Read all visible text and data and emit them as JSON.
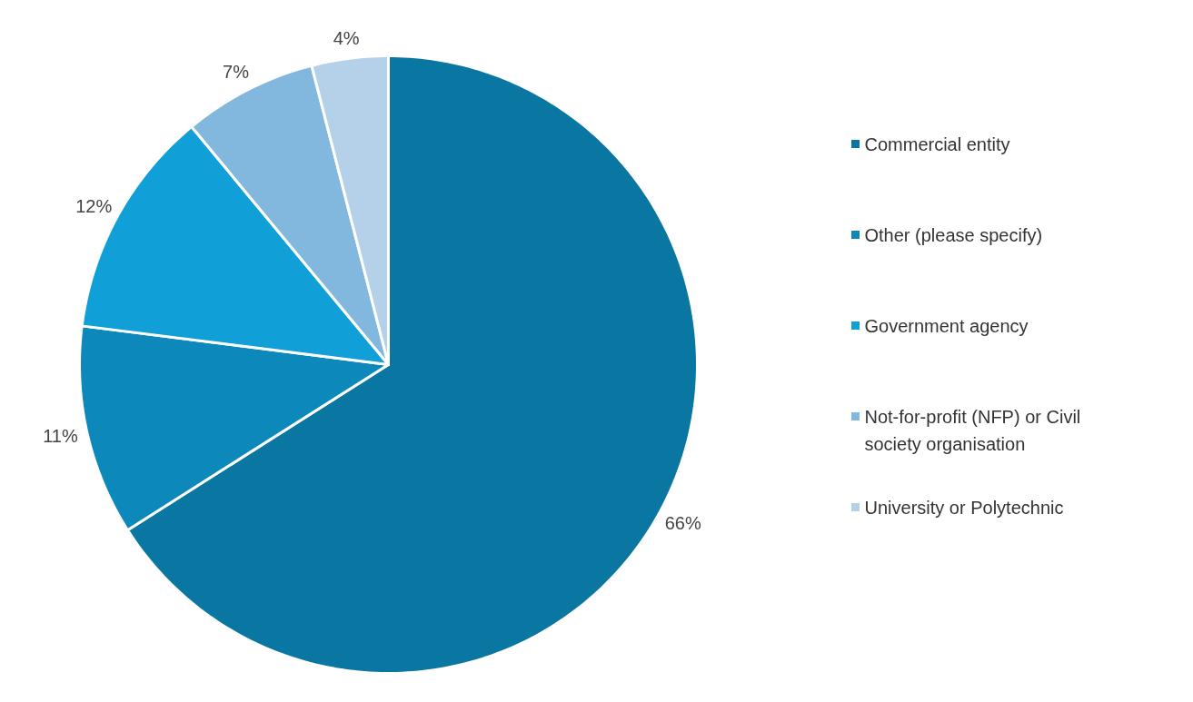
{
  "chart_data": {
    "type": "pie",
    "categories": [
      "Commercial entity",
      "Other (please specify)",
      "Government agency",
      "Not-for-profit (NFP) or Civil society organisation",
      "University or Polytechnic"
    ],
    "values": [
      66,
      11,
      12,
      7,
      4
    ],
    "colors": [
      "#0a76a2",
      "#0d88bb",
      "#119fd8",
      "#83b8de",
      "#b5d1ea"
    ],
    "value_labels": [
      "66%",
      "11%",
      "12%",
      "7%",
      "4%"
    ],
    "legend": "right"
  }
}
